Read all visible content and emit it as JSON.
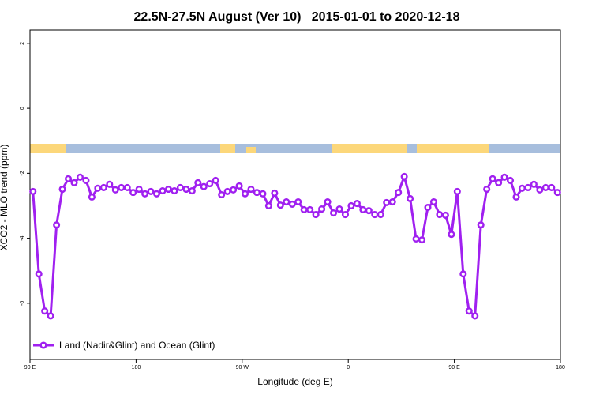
{
  "chart_data": {
    "type": "line",
    "title": "22.5N-27.5N August (Ver 10)   2015-01-01 to 2020-12-18",
    "x_label": "Longitude (deg E)",
    "y_label": "XCO2 - MLO trend (ppm)",
    "x": [
      92.5,
      97.5,
      102.5,
      107.5,
      112.5,
      117.5,
      122.5,
      127.5,
      132.5,
      137.5,
      142.5,
      147.5,
      152.5,
      157.5,
      162.5,
      167.5,
      172.5,
      177.5,
      182.5,
      187.5,
      192.5,
      197.5,
      202.5,
      207.5,
      212.5,
      217.5,
      222.5,
      227.5,
      232.5,
      237.5,
      242.5,
      247.5,
      252.5,
      257.5,
      262.5,
      267.5,
      272.5,
      277.5,
      282.5,
      287.5,
      292.5,
      297.5,
      302.5,
      307.5,
      312.5,
      317.5,
      322.5,
      327.5,
      332.5,
      337.5,
      342.5,
      347.5,
      352.5,
      357.5,
      362.5,
      367.5,
      372.5,
      377.5,
      382.5,
      387.5,
      392.5,
      397.5,
      402.5,
      407.5,
      412.5,
      417.5,
      422.5,
      427.5,
      432.5,
      437.5,
      442.5,
      447.5,
      452.5,
      457.5,
      462.5,
      467.5,
      472.5,
      477.5,
      482.5,
      487.5,
      492.5,
      497.5,
      502.5,
      507.5,
      512.5,
      517.5,
      522.5,
      527.5,
      532.5,
      537.5
    ],
    "series": [
      {
        "name": "Land (Nadir&Glint) and Ocean (Glint)",
        "color": "#a020f0",
        "values": [
          -2.56,
          -5.1,
          -6.24,
          -6.39,
          -3.59,
          -2.49,
          -2.17,
          -2.29,
          -2.12,
          -2.22,
          -2.73,
          -2.46,
          -2.44,
          -2.34,
          -2.51,
          -2.44,
          -2.44,
          -2.59,
          -2.49,
          -2.63,
          -2.56,
          -2.63,
          -2.54,
          -2.49,
          -2.54,
          -2.44,
          -2.49,
          -2.54,
          -2.29,
          -2.41,
          -2.32,
          -2.22,
          -2.66,
          -2.56,
          -2.51,
          -2.39,
          -2.63,
          -2.49,
          -2.59,
          -2.63,
          -3.0,
          -2.61,
          -2.98,
          -2.88,
          -2.95,
          -2.88,
          -3.12,
          -3.12,
          -3.27,
          -3.1,
          -2.88,
          -3.22,
          -3.1,
          -3.27,
          -3.0,
          -2.93,
          -3.12,
          -3.15,
          -3.27,
          -3.27,
          -2.9,
          -2.88,
          -2.59,
          -2.1,
          -2.78,
          -4.02,
          -4.05,
          -3.05,
          -2.88,
          -3.27,
          -3.29,
          -3.88,
          -2.56,
          -5.1,
          -6.24,
          -6.39,
          -3.59,
          -2.49,
          -2.17,
          -2.29,
          -2.12,
          -2.22,
          -2.73,
          -2.46,
          -2.44,
          -2.34,
          -2.51,
          -2.44,
          -2.44,
          -2.59
        ]
      }
    ],
    "xlim": [
      90,
      540
    ],
    "xticks": [
      {
        "value": 90,
        "label": "90 E"
      },
      180,
      {
        "value": 270,
        "label": "90 W"
      },
      {
        "value": 360,
        "label": "0"
      },
      {
        "value": 450,
        "label": "90 E"
      },
      {
        "value": 540,
        "label": "180"
      }
    ],
    "ylim": [
      -7.73,
      2.41
    ],
    "yticks": [
      -6,
      -4,
      -2,
      0,
      2
    ],
    "legend": "bottom-left"
  }
}
